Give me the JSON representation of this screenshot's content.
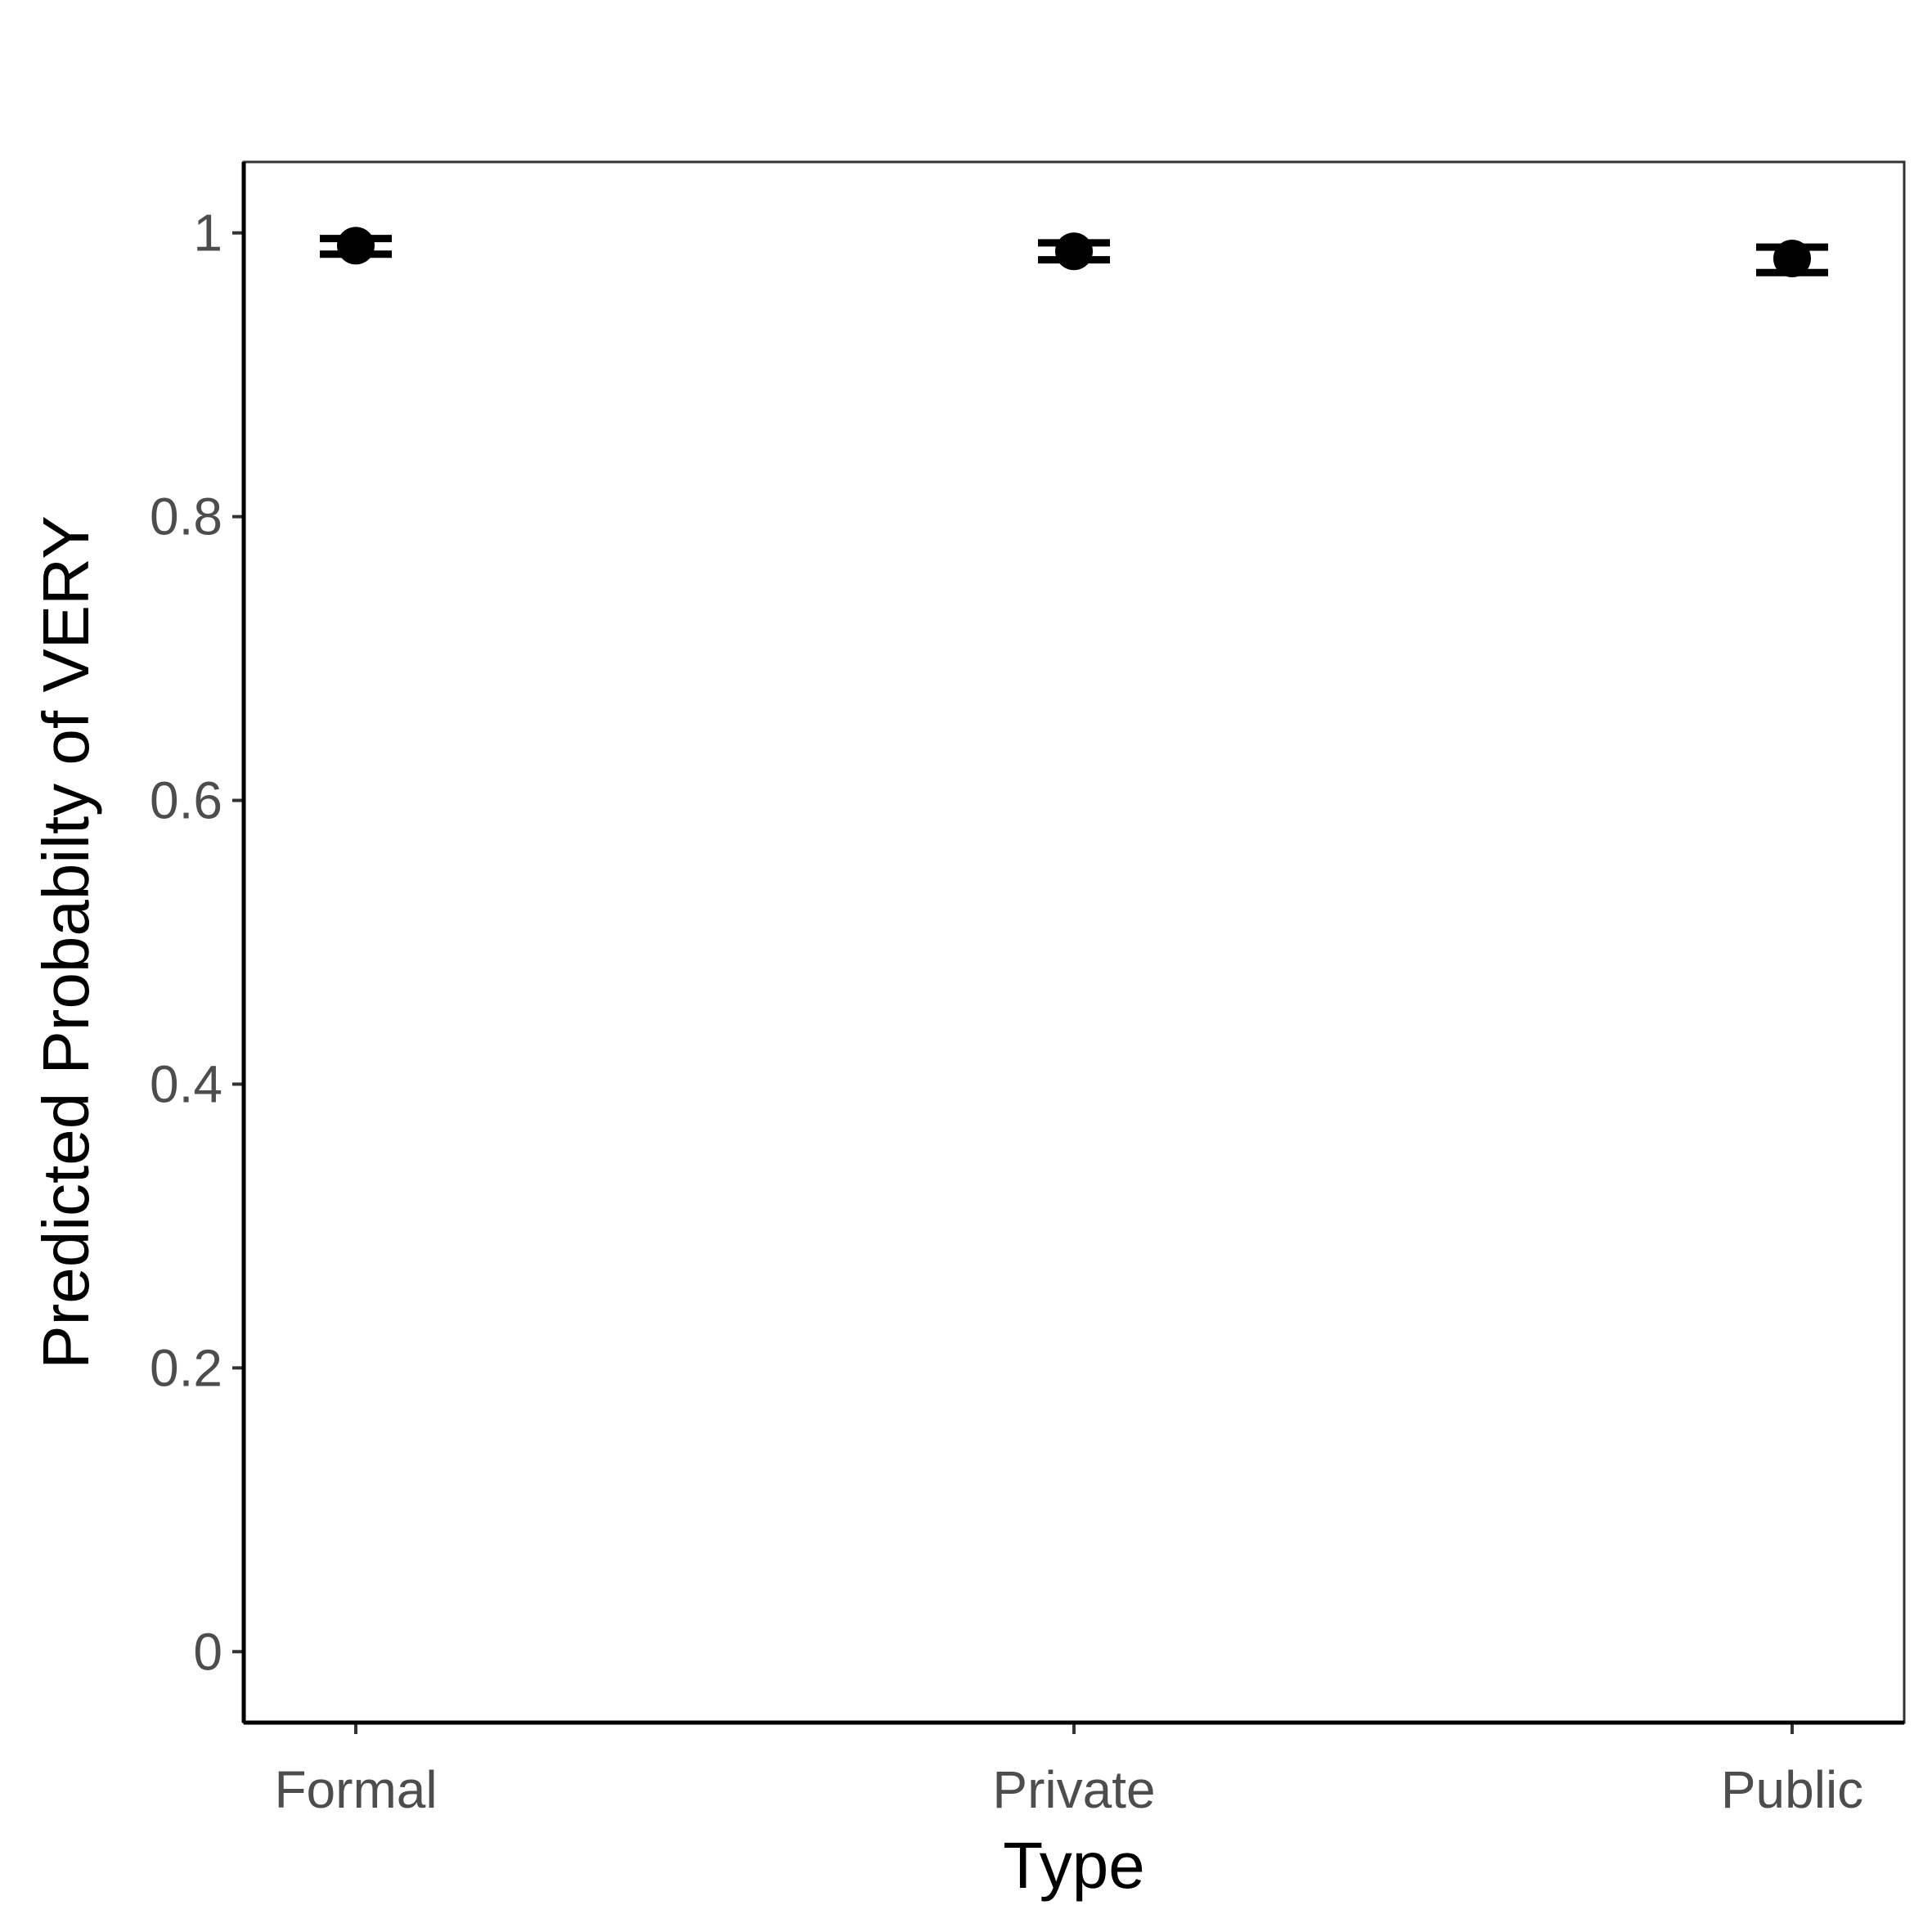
{
  "chart_data": {
    "type": "scatter",
    "title": "",
    "xlabel": "Type",
    "ylabel": "Predicted Probabilty of VERY",
    "categories": [
      "Formal",
      "Private",
      "Public"
    ],
    "points": [
      {
        "category": "Formal",
        "y": 0.991,
        "lower": 0.985,
        "upper": 0.996
      },
      {
        "category": "Private",
        "y": 0.987,
        "lower": 0.981,
        "upper": 0.993
      },
      {
        "category": "Public",
        "y": 0.982,
        "lower": 0.972,
        "upper": 0.99
      }
    ],
    "ylim": [
      -0.05,
      1.05
    ],
    "yticks": [
      0,
      0.2,
      0.4,
      0.6,
      0.8,
      1
    ],
    "ytick_labels": [
      "0",
      "0.2",
      "0.4",
      "0.6",
      "0.8",
      "1"
    ],
    "grid": false,
    "legend": "none",
    "colors": {
      "points": "#000000",
      "axis_text": "#4d4d4d",
      "panel_border": "#333333"
    }
  }
}
